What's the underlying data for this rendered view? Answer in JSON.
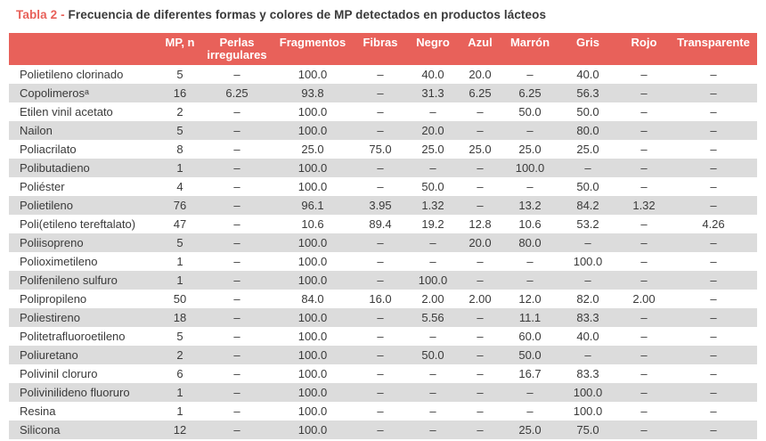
{
  "caption": {
    "label": "Tabla 2 - ",
    "text": "Frecuencia de diferentes formas y colores de MP detectados en productos lácteos"
  },
  "colors": {
    "accent_title": "#e8615a",
    "header_bg": "#e8615a",
    "header_text": "#ffffff",
    "row_alt_bg": "#dcdcdc",
    "body_text": "#3a3a3a"
  },
  "table": {
    "columns": [
      "",
      "MP, n",
      "Perlas irregulares",
      "Fragmentos",
      "Fibras",
      "Negro",
      "Azul",
      "Marrón",
      "Gris",
      "Rojo",
      "Transparente"
    ],
    "empty_cell_symbol": "–",
    "rows": [
      {
        "name": "Polietileno clorinado",
        "values": [
          "5",
          "–",
          "100.0",
          "–",
          "40.0",
          "20.0",
          "–",
          "40.0",
          "–",
          "–"
        ]
      },
      {
        "name": "Copolimerosᵃ",
        "values": [
          "16",
          "6.25",
          "93.8",
          "–",
          "31.3",
          "6.25",
          "6.25",
          "56.3",
          "–",
          "–"
        ]
      },
      {
        "name": "Etilen vinil acetato",
        "values": [
          "2",
          "–",
          "100.0",
          "–",
          "–",
          "–",
          "50.0",
          "50.0",
          "–",
          "–"
        ]
      },
      {
        "name": "Nailon",
        "values": [
          "5",
          "–",
          "100.0",
          "–",
          "20.0",
          "–",
          "–",
          "80.0",
          "–",
          "–"
        ]
      },
      {
        "name": "Poliacrilato",
        "values": [
          "8",
          "–",
          "25.0",
          "75.0",
          "25.0",
          "25.0",
          "25.0",
          "25.0",
          "–",
          "–"
        ]
      },
      {
        "name": "Polibutadieno",
        "values": [
          "1",
          "–",
          "100.0",
          "–",
          "–",
          "–",
          "100.0",
          "–",
          "–",
          "–"
        ]
      },
      {
        "name": "Poliéster",
        "values": [
          "4",
          "–",
          "100.0",
          "–",
          "50.0",
          "–",
          "–",
          "50.0",
          "–",
          "–"
        ]
      },
      {
        "name": "Polietileno",
        "values": [
          "76",
          "–",
          "96.1",
          "3.95",
          "1.32",
          "–",
          "13.2",
          "84.2",
          "1.32",
          "–"
        ]
      },
      {
        "name": "Poli(etileno tereftalato)",
        "values": [
          "47",
          "–",
          "10.6",
          "89.4",
          "19.2",
          "12.8",
          "10.6",
          "53.2",
          "–",
          "4.26"
        ]
      },
      {
        "name": "Poliisopreno",
        "values": [
          "5",
          "–",
          "100.0",
          "–",
          "–",
          "20.0",
          "80.0",
          "–",
          "–",
          "–"
        ]
      },
      {
        "name": "Polioximetileno",
        "values": [
          "1",
          "–",
          "100.0",
          "–",
          "–",
          "–",
          "–",
          "100.0",
          "–",
          "–"
        ]
      },
      {
        "name": "Polifenileno sulfuro",
        "values": [
          "1",
          "–",
          "100.0",
          "–",
          "100.0",
          "–",
          "–",
          "–",
          "–",
          "–"
        ]
      },
      {
        "name": "Polipropileno",
        "values": [
          "50",
          "–",
          "84.0",
          "16.0",
          "2.00",
          "2.00",
          "12.0",
          "82.0",
          "2.00",
          "–"
        ]
      },
      {
        "name": "Poliestireno",
        "values": [
          "18",
          "–",
          "100.0",
          "–",
          "5.56",
          "–",
          "11.1",
          "83.3",
          "–",
          "–"
        ]
      },
      {
        "name": "Politetrafluoroetileno",
        "values": [
          "5",
          "–",
          "100.0",
          "–",
          "–",
          "–",
          "60.0",
          "40.0",
          "–",
          "–"
        ]
      },
      {
        "name": "Poliuretano",
        "values": [
          "2",
          "–",
          "100.0",
          "–",
          "50.0",
          "–",
          "50.0",
          "–",
          "–",
          "–"
        ]
      },
      {
        "name": "Polivinil cloruro",
        "values": [
          "6",
          "–",
          "100.0",
          "–",
          "–",
          "–",
          "16.7",
          "83.3",
          "–",
          "–"
        ]
      },
      {
        "name": "Polivinilideno fluoruro",
        "values": [
          "1",
          "–",
          "100.0",
          "–",
          "–",
          "–",
          "–",
          "100.0",
          "–",
          "–"
        ]
      },
      {
        "name": "Resina",
        "values": [
          "1",
          "–",
          "100.0",
          "–",
          "–",
          "–",
          "–",
          "100.0",
          "–",
          "–"
        ]
      },
      {
        "name": "Silicona",
        "values": [
          "12",
          "–",
          "100.0",
          "–",
          "–",
          "–",
          "25.0",
          "75.0",
          "–",
          "–"
        ]
      }
    ]
  }
}
